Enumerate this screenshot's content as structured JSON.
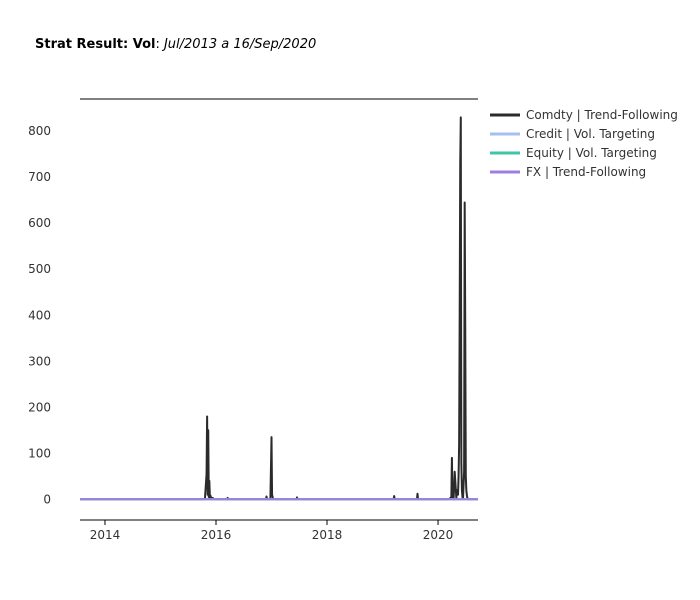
{
  "title": {
    "label": "Strat Result: Vol",
    "separator": ": ",
    "range": "Jul/2013 a 16/Sep/2020"
  },
  "colors": {
    "comdty": "#2b2b2b",
    "credit": "#a6bff0",
    "equity": "#3ec6a6",
    "fx": "#a07de0"
  },
  "chart_data": {
    "type": "line",
    "title": "Strat Result: Vol: Jul/2013 a 16/Sep/2020",
    "xlabel": "",
    "ylabel": "",
    "xlim": [
      2013.55,
      2020.72
    ],
    "ylim": [
      -45,
      870
    ],
    "x_ticks": [
      2014,
      2016,
      2018,
      2020
    ],
    "x_tick_labels": [
      "2014",
      "2016",
      "2018",
      "2020"
    ],
    "y_ticks": [
      0,
      100,
      200,
      300,
      400,
      500,
      600,
      700,
      800
    ],
    "y_tick_labels": [
      "0",
      "100",
      "200",
      "300",
      "400",
      "500",
      "600",
      "700",
      "800"
    ],
    "grid": false,
    "legend_position": "top-right",
    "series": [
      {
        "name": "Comdty | Trend-Following",
        "color": "#2b2b2b",
        "x": [
          2013.55,
          2015.8,
          2015.83,
          2015.84,
          2015.85,
          2015.86,
          2015.87,
          2015.88,
          2015.89,
          2015.9,
          2015.92,
          2015.94,
          2015.96,
          2016.2,
          2016.21,
          2016.22,
          2016.9,
          2016.91,
          2016.92,
          2016.98,
          2017.0,
          2017.01,
          2017.02,
          2017.03,
          2017.05,
          2017.45,
          2017.46,
          2017.47,
          2019.2,
          2019.21,
          2019.22,
          2019.62,
          2019.63,
          2019.64,
          2020.2,
          2020.24,
          2020.25,
          2020.26,
          2020.28,
          2020.3,
          2020.33,
          2020.34,
          2020.36,
          2020.37,
          2020.38,
          2020.39,
          2020.4,
          2020.41,
          2020.42,
          2020.43,
          2020.44,
          2020.45,
          2020.47,
          2020.48,
          2020.49,
          2020.5,
          2020.51,
          2020.52,
          2020.53,
          2020.55,
          2020.6,
          2020.72
        ],
        "y": [
          0,
          0,
          55,
          180,
          10,
          150,
          5,
          40,
          3,
          8,
          0,
          3,
          0,
          0,
          3,
          0,
          0,
          6,
          0,
          0,
          135,
          10,
          5,
          0,
          0,
          0,
          4,
          0,
          0,
          7,
          0,
          0,
          12,
          0,
          0,
          5,
          90,
          5,
          0,
          60,
          2,
          20,
          10,
          50,
          120,
          400,
          730,
          830,
          80,
          20,
          5,
          2,
          60,
          645,
          380,
          50,
          20,
          8,
          2,
          0,
          0,
          0
        ]
      },
      {
        "name": "Credit | Vol. Targeting",
        "color": "#a6bff0",
        "x": [
          2013.55,
          2020.72
        ],
        "y": [
          0,
          0
        ]
      },
      {
        "name": "Equity | Vol. Targeting",
        "color": "#3ec6a6",
        "x": [
          2013.55,
          2020.72
        ],
        "y": [
          0,
          0
        ]
      },
      {
        "name": "FX | Trend-Following",
        "color": "#a07de0",
        "x": [
          2013.55,
          2020.72
        ],
        "y": [
          0,
          0
        ]
      }
    ]
  }
}
